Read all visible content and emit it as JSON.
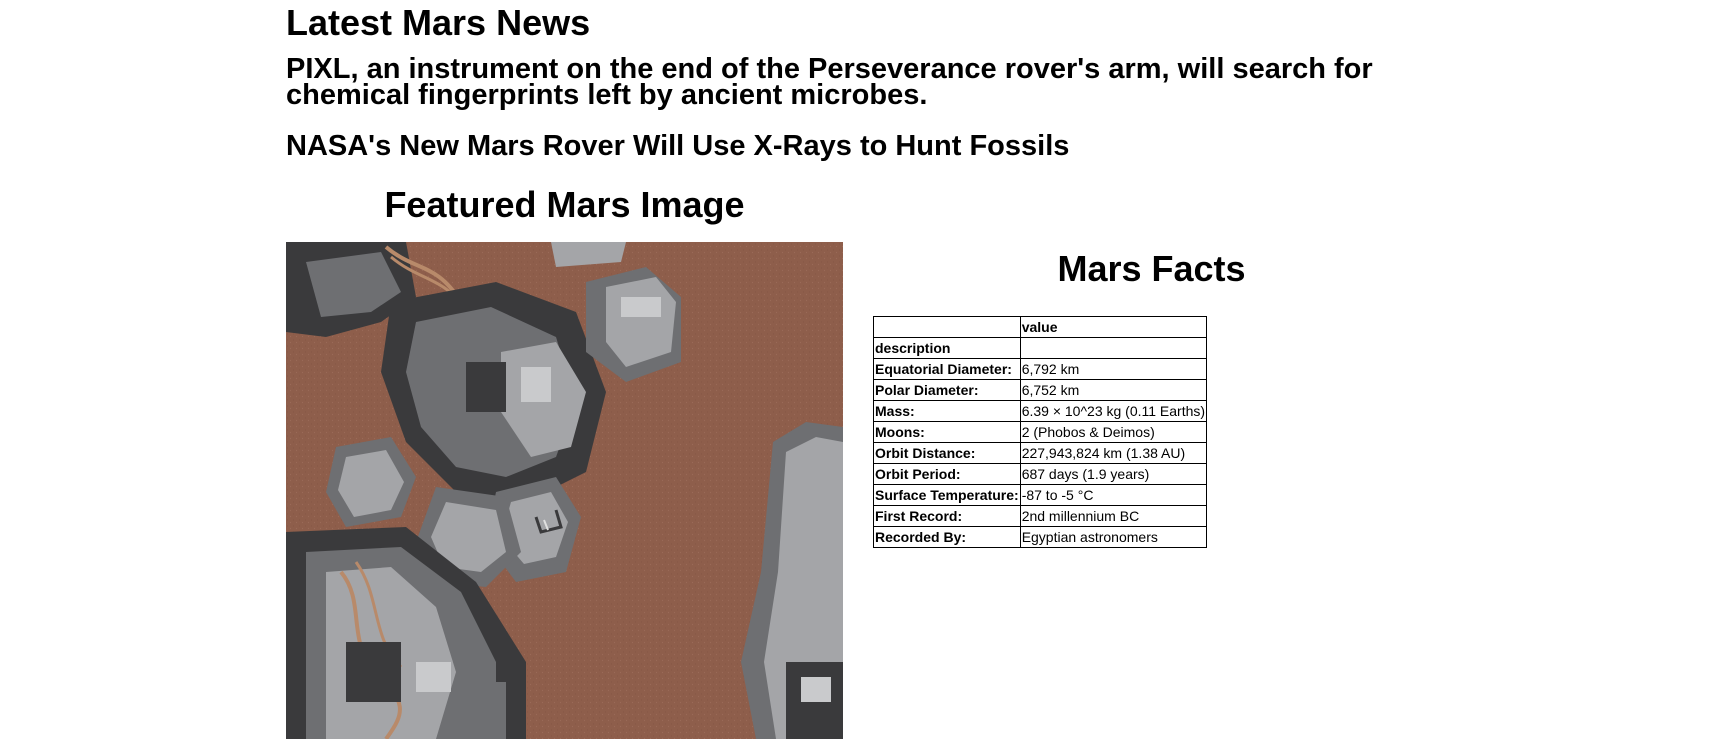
{
  "news": {
    "section_heading": "Latest Mars News",
    "teaser": "PIXL, an instrument on the end of the Perseverance rover's arm, will search for chemical fingerprints left by ancient microbes.",
    "title": "NASA's New Mars Rover Will Use X-Rays to Hunt Fossils"
  },
  "featured_image": {
    "heading": "Featured Mars Image",
    "colors": {
      "sky": "#9b6b57",
      "ground": "#8e5e4b",
      "metal_dark": "#3a3a3c",
      "metal_mid": "#6e6f72",
      "metal_light": "#a4a5a8",
      "metal_highlight": "#c9cacc",
      "wire": "#b88a6a"
    }
  },
  "facts": {
    "heading": "Mars Facts",
    "header_row": {
      "blank": "",
      "value": "value"
    },
    "index_row": {
      "label": "description",
      "value": ""
    },
    "rows": [
      {
        "label": "Equatorial Diameter:",
        "value": "6,792 km"
      },
      {
        "label": "Polar Diameter:",
        "value": "6,752 km"
      },
      {
        "label": "Mass:",
        "value": "6.39 × 10^23 kg (0.11 Earths)"
      },
      {
        "label": "Moons:",
        "value": "2 (Phobos & Deimos)"
      },
      {
        "label": "Orbit Distance:",
        "value": "227,943,824 km (1.38 AU)"
      },
      {
        "label": "Orbit Period:",
        "value": "687 days (1.9 years)"
      },
      {
        "label": "Surface Temperature:",
        "value": "-87 to -5 °C"
      },
      {
        "label": "First Record:",
        "value": "2nd millennium BC"
      },
      {
        "label": "Recorded By:",
        "value": "Egyptian astronomers"
      }
    ]
  }
}
